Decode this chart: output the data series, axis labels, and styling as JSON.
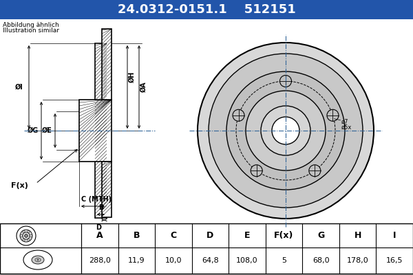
{
  "title_part1": "24.0312-0151.1",
  "title_part2": "512151",
  "title_bg": "#2255aa",
  "title_fg": "#ffffff",
  "subtitle1": "Abbildung ähnlich",
  "subtitle2": "Illustration similar",
  "headers": [
    "A",
    "B",
    "C",
    "D",
    "E",
    "F(x)",
    "G",
    "H",
    "I"
  ],
  "values": [
    "288,0",
    "11,9",
    "10,0",
    "64,8",
    "108,0",
    "5",
    "68,0",
    "178,0",
    "16,5"
  ],
  "bg_color": "#cccccc",
  "drawing_bg": "#ffffff"
}
